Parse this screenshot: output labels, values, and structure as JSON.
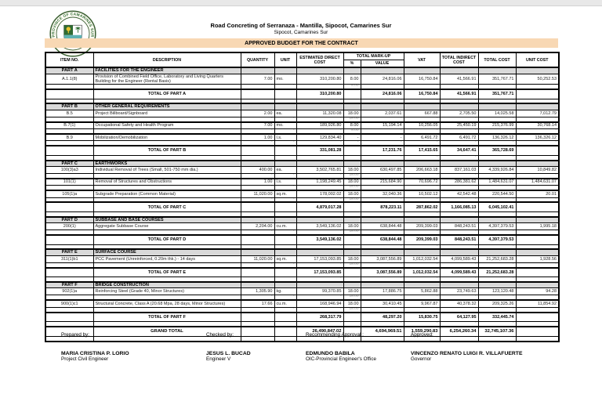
{
  "header": {
    "title_line1": "Road Concreting of Serranaza - Mantilla, Sipocot, Camarines Sur",
    "title_line2": "Sipocot, Camarines Sur",
    "band": "APPROVED BUDGET FOR THE CONTRACT",
    "seal_text": "PROVINCE OF CAMARINES SUR"
  },
  "colors": {
    "band_bg": "#F8D8B4",
    "part_row_bg": "#D9D9D9",
    "seal_green": "#2F6B33",
    "seal_teal": "#5FB3B3",
    "seal_yellow": "#E8C32E"
  },
  "table": {
    "header_labels": {
      "item_no": "ITEM NO.",
      "description": "DESCRIPTION",
      "quantity": "QUANTITY",
      "unit": "UNIT",
      "direct": "ESTIMATED DIRECT COST",
      "markup": "TOTAL MARK-UP",
      "pct": "%",
      "value": "VALUE",
      "vat": "VAT",
      "indirect": "TOTAL INDIRECT COST",
      "total": "TOTAL COST",
      "unit_cost": "UNIT COST"
    },
    "dash": "-",
    "rows": [
      {
        "type": "part",
        "no": "PART A",
        "desc": "FACILITIES FOR THE ENGINEER"
      },
      {
        "type": "item",
        "no": "A.1.1(8)",
        "desc": "Provision of Combined Field Office, Laboratory and Living Quarters Building for the Engineer (Rental Basis)",
        "qty": "7.00",
        "unit": "mo.",
        "direct": "310,200.80",
        "pct": "8.00",
        "value": "24,816.06",
        "vat": "16,750.84",
        "indirect": "41,566.91",
        "total": "351,767.71",
        "unit_cost": "50,252.53",
        "sub_pct": "8.00"
      },
      {
        "type": "total",
        "label": "TOTAL OF PART A",
        "direct": "310,200.80",
        "value": "24,816.06",
        "vat": "16,750.84",
        "indirect": "41,566.91",
        "total": "351,767.71"
      },
      {
        "type": "part",
        "no": "PART B",
        "desc": "OTHER GENERAL REQUIREMENTS"
      },
      {
        "type": "item",
        "no": "B.5",
        "desc": "Project Billboard/Signboard",
        "qty": "2.00",
        "unit": "ea.",
        "direct": "11,320.08",
        "pct": "18.00",
        "value": "2,037.61",
        "vat": "667.88",
        "indirect": "2,705.50",
        "total": "14,025.58",
        "unit_cost": "7,012.79",
        "sub_pct": "18.00"
      },
      {
        "type": "item",
        "no": "B.7(1)",
        "desc": "Occupational Safety and Health Program",
        "qty": "7.00",
        "unit": "mo.",
        "direct": "189,926.80",
        "pct": "8.00",
        "value": "15,194.14",
        "vat": "10,256.05",
        "indirect": "25,450.19",
        "total": "215,376.99",
        "unit_cost": "30,768.14",
        "sub_pct": "8.00"
      },
      {
        "type": "item",
        "no": "B.9",
        "desc": "Mobilization/Demobilization",
        "qty": "1.00",
        "unit": "l.s.",
        "direct": "129,834.40",
        "pct": "-",
        "value": "-",
        "vat": "6,491.72",
        "indirect": "6,491.72",
        "total": "136,326.12",
        "unit_cost": "136,326.12",
        "sub_pct": "-"
      },
      {
        "type": "total",
        "label": "TOTAL OF PART B",
        "direct": "331,081.28",
        "value": "17,231.76",
        "vat": "17,415.65",
        "indirect": "34,647.41",
        "total": "365,728.69"
      },
      {
        "type": "part",
        "no": "PART C",
        "desc": "EARTHWORKS"
      },
      {
        "type": "item",
        "no": "100(3)a3",
        "desc": "Individual Removal of Trees (Small, 501-750 mm dia.)",
        "qty": "400.00",
        "unit": "ea.",
        "direct": "3,502,765.81",
        "pct": "18.00",
        "value": "630,497.85",
        "vat": "206,663.18",
        "indirect": "837,161.03",
        "total": "4,339,926.84",
        "unit_cost": "10,849.82",
        "sub_pct": "18.00"
      },
      {
        "type": "item",
        "no": "101(1)",
        "desc": "Removal of Structures and Obstructions",
        "qty": "1.00",
        "unit": "l.s.",
        "direct": "1,198,249.45",
        "pct": "18.00",
        "value": "215,684.90",
        "vat": "70,696.72",
        "indirect": "286,381.62",
        "total": "1,484,631.07",
        "unit_cost": "1,484,631.07",
        "sub_pct": "18.00"
      },
      {
        "type": "item",
        "no": "105(1)a",
        "desc": "Subgrade Preparation (Common Material)",
        "qty": "11,020.00",
        "unit": "sq.m.",
        "direct": "178,002.02",
        "pct": "18.00",
        "value": "32,040.36",
        "vat": "10,502.12",
        "indirect": "42,542.48",
        "total": "220,544.50",
        "unit_cost": "20.01",
        "sub_pct": "18.00"
      },
      {
        "type": "total",
        "label": "TOTAL OF PART C",
        "direct": "4,879,017.28",
        "value": "878,223.11",
        "vat": "287,862.02",
        "indirect": "1,166,085.13",
        "total": "6,045,102.41"
      },
      {
        "type": "part",
        "no": "PART D",
        "desc": "SUBBASE AND BASE COURSES"
      },
      {
        "type": "item",
        "no": "200(1)",
        "desc": "Aggregate Subbase Course",
        "qty": "2,204.00",
        "unit": "cu.m.",
        "direct": "3,549,136.02",
        "pct": "18.00",
        "value": "638,844.48",
        "vat": "209,399.03",
        "indirect": "848,243.51",
        "total": "4,397,379.53",
        "unit_cost": "1,995.18",
        "sub_pct": "18.00"
      },
      {
        "type": "total",
        "label": "TOTAL OF PART D",
        "direct": "3,549,136.02",
        "value": "638,844.48",
        "vat": "209,399.03",
        "indirect": "848,243.51",
        "total": "4,397,379.53"
      },
      {
        "type": "part",
        "no": "PART E",
        "desc": "SURFACE COURSE"
      },
      {
        "type": "item",
        "no": "311(1)b1",
        "desc": "PCC Pavement (Unreinforced, 0.20m thk.) - 14 days",
        "qty": "11,020.00",
        "unit": "sq.m.",
        "direct": "17,153,093.85",
        "pct": "18.00",
        "value": "3,087,556.89",
        "vat": "1,012,032.54",
        "indirect": "4,099,589.43",
        "total": "21,252,683.28",
        "unit_cost": "1,928.56",
        "sub_pct": "18.00"
      },
      {
        "type": "total",
        "label": "TOTAL OF PART E",
        "direct": "17,153,093.85",
        "value": "3,087,556.89",
        "vat": "1,012,032.54",
        "indirect": "4,099,589.43",
        "total": "21,252,683.28"
      },
      {
        "type": "part",
        "no": "PART F",
        "desc": "BRIDGE CONSTRUCTION"
      },
      {
        "type": "item",
        "no": "902(1)a",
        "desc": "Reinforcing Steel (Grade 40, Minor Structures)",
        "qty": "1,305.90",
        "unit": "kg.",
        "direct": "99,370.85",
        "pct": "18.00",
        "value": "17,886.75",
        "vat": "5,862.88",
        "indirect": "23,749.63",
        "total": "123,120.48",
        "unit_cost": "94.28",
        "sub_pct": "18.00"
      },
      {
        "type": "item",
        "no": "900(1)c1",
        "desc": "Structural Concrete, Class A (20.68 Mpa, 28 days, Minor Structures)",
        "qty": "17.66",
        "unit": "cu.m.",
        "direct": "168,946.94",
        "pct": "18.00",
        "value": "30,410.45",
        "vat": "9,967.87",
        "indirect": "40,378.32",
        "total": "209,325.26",
        "unit_cost": "11,854.92",
        "sub_pct": "18.00"
      },
      {
        "type": "total",
        "label": "TOTAL OF PART F",
        "direct": "268,317.79",
        "value": "48,297.20",
        "vat": "15,830.75",
        "indirect": "64,127.95",
        "total": "332,445.74"
      },
      {
        "type": "grand",
        "label": "GRAND TOTAL",
        "direct": "26,490,847.02",
        "value": "4,694,969.51",
        "vat": "1,559,290.83",
        "indirect": "6,254,260.34",
        "total": "32,745,107.36"
      }
    ]
  },
  "footer": {
    "blocks": [
      {
        "label": "Prepared by:",
        "name": "MARIA CRISTINA P. LORIO",
        "title": "Project Civil Engineer"
      },
      {
        "label": "Checked by:",
        "name": "JESUS L. BUCAD",
        "title": "Engineer V"
      },
      {
        "label": "Recommending Approval :",
        "name": "EDMUNDO BABILA",
        "title": "OIC-Provincial Engineer's Office"
      },
      {
        "label": "Approved:",
        "name": "VINCENZO RENATO LUIGI R. VILLAFUERTE",
        "title": "Governor"
      }
    ]
  }
}
